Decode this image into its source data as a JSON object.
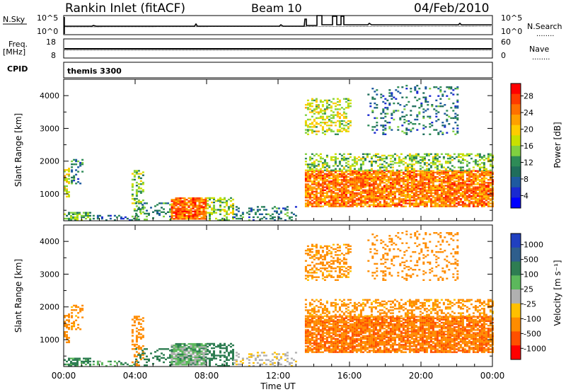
{
  "header": {
    "station": "Rankin Inlet (fitACF)",
    "beam": "Beam 10",
    "date": "04/Feb/2010"
  },
  "labels": {
    "nsky": "N.Sky",
    "nsearch": "N.Search",
    "freq": "Freq.",
    "freq_unit": "[MHz]",
    "nave": "Nave",
    "cpid": "CPID",
    "cpid_value": "themis 3300",
    "dots": "........"
  },
  "axes": {
    "noise_ticks": [
      "10^5",
      "10^0"
    ],
    "freq_ticks_left": [
      "18",
      "8"
    ],
    "freq_ticks_right": [
      "60",
      "0"
    ],
    "y_label": "Slant Range [km]",
    "y_ticks": [
      "4000",
      "3000",
      "2000",
      "1000"
    ],
    "x_ticks": [
      "00:00",
      "04:00",
      "08:00",
      "12:00",
      "16:00",
      "20:00",
      "00:00"
    ],
    "x_label": "Time UT"
  },
  "colorbars": {
    "power": {
      "label": "Power [dB]",
      "ticks": [
        "28",
        "24",
        "20",
        "16",
        "12",
        "8",
        "4"
      ],
      "colors": [
        "#ff0000",
        "#ff3a00",
        "#ff7000",
        "#ffa000",
        "#ffcc00",
        "#c8e000",
        "#80d040",
        "#2e8b57",
        "#1f6e5c",
        "#1e5aa0",
        "#1a2ad0",
        "#0000ff"
      ]
    },
    "velocity": {
      "label": "Velocity [m s⁻¹]",
      "ticks": [
        "1000",
        "500",
        "100",
        "25",
        "-25",
        "-100",
        "-500",
        "-1000"
      ],
      "colors": [
        "#2040c0",
        "#2e5e8c",
        "#2e7d52",
        "#5cb85c",
        "#b0b0b0",
        "#ffc000",
        "#ff8c00",
        "#ff5000",
        "#ff0000"
      ]
    }
  },
  "chart_data": {
    "type": "heatmap",
    "time_range_hours": [
      0,
      24
    ],
    "range_km": [
      180,
      4500
    ],
    "clusters": [
      {
        "t0": 0.0,
        "t1": 1.5,
        "r0": 180,
        "r1": 450,
        "power": 12,
        "velocity": 80,
        "density": 0.55
      },
      {
        "t0": 0.4,
        "t1": 1.0,
        "r0": 1300,
        "r1": 2050,
        "power": 8,
        "velocity": -150,
        "density": 0.4
      },
      {
        "t0": 0.0,
        "t1": 0.3,
        "r0": 900,
        "r1": 1800,
        "power": 18,
        "velocity": -200,
        "density": 0.5
      },
      {
        "t0": 1.5,
        "t1": 4.0,
        "r0": 180,
        "r1": 350,
        "power": 6,
        "velocity": 60,
        "density": 0.3
      },
      {
        "t0": 3.8,
        "t1": 4.4,
        "r0": 200,
        "r1": 1700,
        "power": 14,
        "velocity": -250,
        "density": 0.35
      },
      {
        "t0": 4.0,
        "t1": 6.0,
        "r0": 200,
        "r1": 700,
        "power": 10,
        "velocity": 120,
        "density": 0.25
      },
      {
        "t0": 6.0,
        "t1": 8.0,
        "r0": 220,
        "r1": 880,
        "power": 25,
        "velocity": 40,
        "density": 0.9
      },
      {
        "t0": 8.0,
        "t1": 9.5,
        "r0": 180,
        "r1": 900,
        "power": 14,
        "velocity": 150,
        "density": 0.45
      },
      {
        "t0": 9.5,
        "t1": 13.0,
        "r0": 180,
        "r1": 600,
        "power": 8,
        "velocity": -20,
        "density": 0.3
      },
      {
        "t0": 13.5,
        "t1": 24.0,
        "r0": 600,
        "r1": 1700,
        "power": 24,
        "velocity": -350,
        "density": 0.85
      },
      {
        "t0": 13.5,
        "t1": 24.0,
        "r0": 1700,
        "r1": 2200,
        "power": 14,
        "velocity": -150,
        "density": 0.45
      },
      {
        "t0": 13.5,
        "t1": 16.0,
        "r0": 2800,
        "r1": 3900,
        "power": 16,
        "velocity": -150,
        "density": 0.35
      },
      {
        "t0": 17.0,
        "t1": 22.0,
        "r0": 2800,
        "r1": 4300,
        "power": 8,
        "velocity": -200,
        "density": 0.18
      }
    ]
  }
}
